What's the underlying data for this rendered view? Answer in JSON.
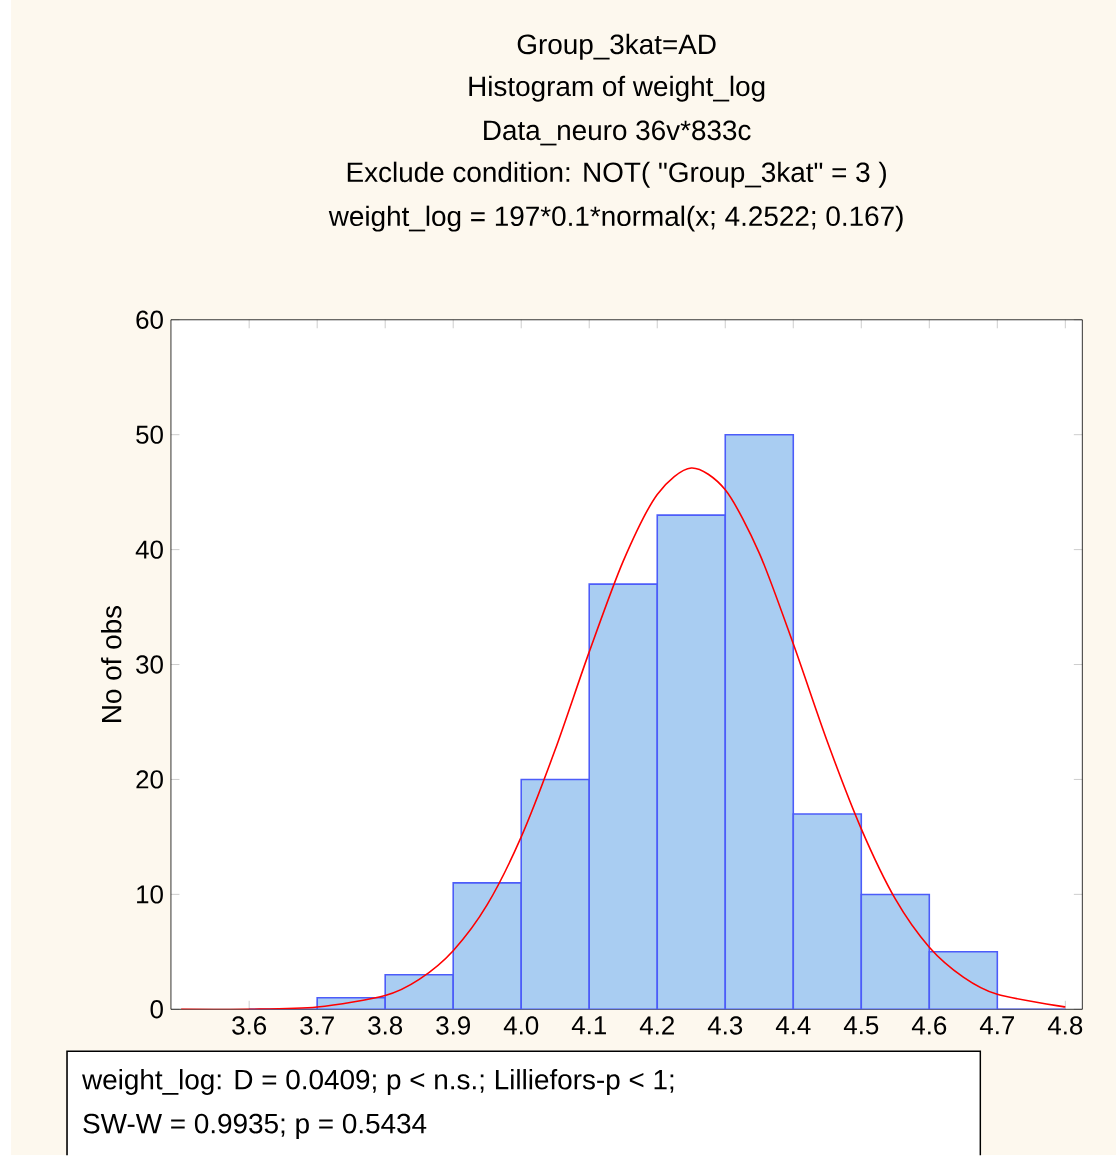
{
  "chart_data": {
    "type": "histogram",
    "title": "Group_3kat=AD",
    "subtitle": "Histogram of weight_log",
    "ylabel": "No of obs",
    "annotations": [
      "Data_neuro 36v*833c",
      "Exclude condition: NOT( \"Group_3kat\" = 3 )",
      "weight_log = 197*0.1*normal(x; 4.2522; 0.167)",
      "weight_log:   D = 0.0409; p < n.s.; Lilliefors-p < 1;",
      "SW-W = 0.9935; p = 0.5434"
    ],
    "xlim": [
      3.485,
      4.825
    ],
    "ylim": [
      0,
      60
    ],
    "xticks": [
      3.6,
      3.7,
      3.8,
      3.9,
      {
        "value": 4.0,
        "label": "4.0"
      },
      4.1,
      4.2,
      4.3,
      4.4,
      4.5,
      4.6,
      4.7,
      4.8
    ],
    "yticks": [
      0,
      10,
      20,
      30,
      40,
      50,
      60
    ],
    "series": [
      {
        "color": "#a9cdf2",
        "bins": [
          3.6,
          3.7,
          3.8,
          3.9,
          4.0,
          4.1,
          4.2,
          4.3,
          4.4,
          4.5,
          4.6,
          4.7,
          4.8
        ],
        "values": [
          0,
          1,
          3,
          11,
          20,
          37,
          43,
          50,
          17,
          10,
          5,
          0
        ]
      },
      {
        "type": "line",
        "color": "#ff0000",
        "x": [
          3.5,
          3.6,
          3.7,
          3.8,
          3.85,
          3.9,
          3.95,
          4.0,
          4.05,
          4.1,
          4.15,
          4.2,
          4.25,
          4.3,
          4.35,
          4.4,
          4.45,
          4.5,
          4.55,
          4.6,
          4.65,
          4.7,
          4.8
        ],
        "values": [
          0,
          0,
          0.2,
          1.2,
          2.6,
          5.1,
          9.1,
          15,
          22.6,
          31.1,
          39,
          44.8,
          47.1,
          45.2,
          39.7,
          31.8,
          23.3,
          15.7,
          9.6,
          5.4,
          2.8,
          1.3,
          0.2
        ]
      }
    ]
  }
}
